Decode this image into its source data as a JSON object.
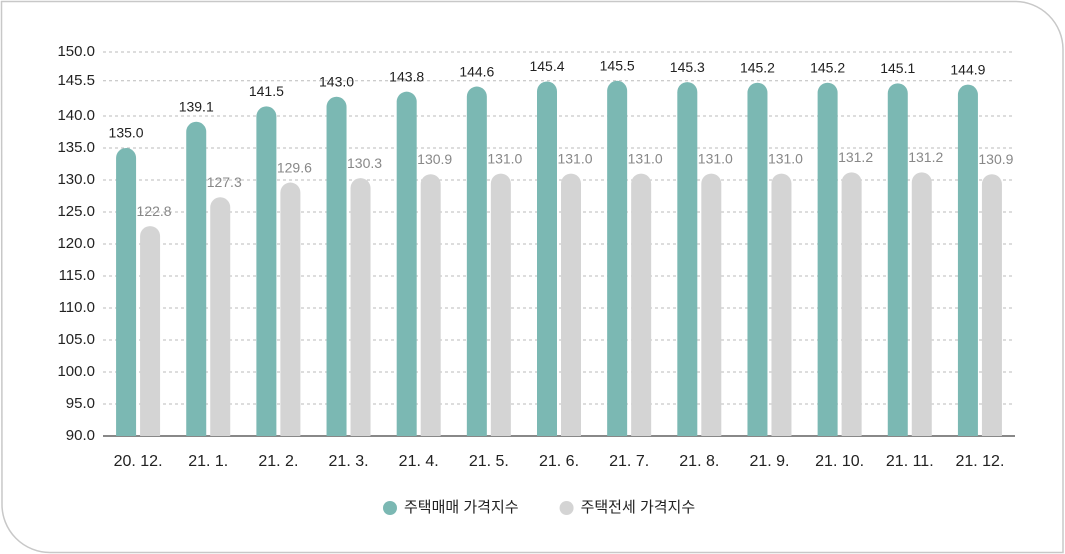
{
  "chart_data": {
    "type": "bar",
    "categories": [
      "20. 12.",
      "21. 1.",
      "21. 2.",
      "21. 3.",
      "21. 4.",
      "21. 5.",
      "21. 6.",
      "21. 7.",
      "21. 8.",
      "21. 9.",
      "21. 10.",
      "21. 11.",
      "21. 12."
    ],
    "series": [
      {
        "name": "주택매매 가격지수",
        "color": "#7bb8b3",
        "values": [
          135.0,
          139.1,
          141.5,
          143.0,
          143.8,
          144.6,
          145.4,
          145.5,
          145.3,
          145.2,
          145.2,
          145.1,
          144.9
        ],
        "value_labels": [
          "135.0",
          "139.1",
          "141.5",
          "143.0",
          "143.8",
          "144.6",
          "145.4",
          "145.5",
          "145.3",
          "145.2",
          "145.2",
          "145.1",
          "144.9"
        ]
      },
      {
        "name": "주택전세 가격지수",
        "color": "#d4d4d4",
        "values": [
          122.8,
          127.3,
          129.6,
          130.3,
          130.9,
          131.0,
          131.0,
          131.0,
          131.0,
          131.0,
          131.2,
          131.2,
          130.9
        ],
        "value_labels": [
          "122.8",
          "127.3",
          "129.6",
          "130.3",
          "130.9",
          "131.0",
          "131.0",
          "131.0",
          "131.0",
          "131.0",
          "131.2",
          "131.2",
          "130.9"
        ]
      }
    ],
    "ylim": [
      90,
      150
    ],
    "yticks": [
      {
        "value": 90,
        "label": "90.0"
      },
      {
        "value": 95,
        "label": "95.0"
      },
      {
        "value": 100,
        "label": "100.0"
      },
      {
        "value": 105,
        "label": "105.0"
      },
      {
        "value": 110,
        "label": "110.0"
      },
      {
        "value": 115,
        "label": "115.0"
      },
      {
        "value": 120,
        "label": "120.0"
      },
      {
        "value": 125,
        "label": "125.0"
      },
      {
        "value": 130,
        "label": "130.0"
      },
      {
        "value": 135,
        "label": "135.0"
      },
      {
        "value": 140,
        "label": "140.0"
      },
      145.5,
      {
        "value": 150,
        "label": "150.0"
      }
    ],
    "grid": true,
    "legend": "bottom"
  }
}
